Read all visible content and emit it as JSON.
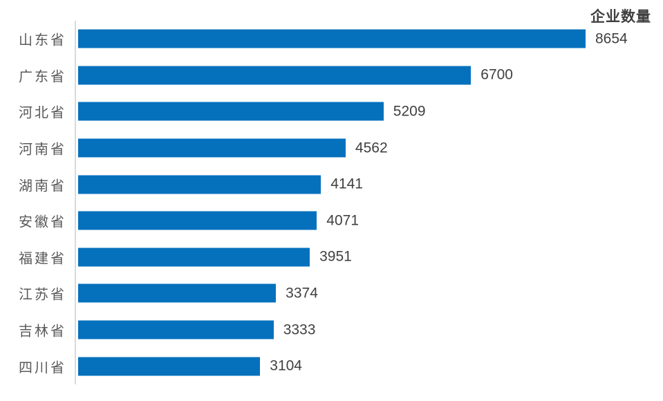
{
  "chart_data": {
    "type": "bar",
    "orientation": "horizontal",
    "title": "企业数量",
    "categories": [
      "山东省",
      "广东省",
      "河北省",
      "河南省",
      "湖南省",
      "安徽省",
      "福建省",
      "江苏省",
      "吉林省",
      "四川省"
    ],
    "values": [
      8654,
      6700,
      5209,
      4562,
      4141,
      4071,
      3951,
      3374,
      3333,
      3104
    ],
    "xlabel": "",
    "ylabel": "",
    "xlim": [
      0,
      8654
    ],
    "grid": "off",
    "legend": "none",
    "data_labels": "outside-end",
    "colors": {
      "bar": "#0571BD",
      "axis_line": "#D9D9D9",
      "category_label": "#595959",
      "value_label": "#404040",
      "title": "#3F3F3F",
      "background": "#FFFFFF"
    }
  }
}
